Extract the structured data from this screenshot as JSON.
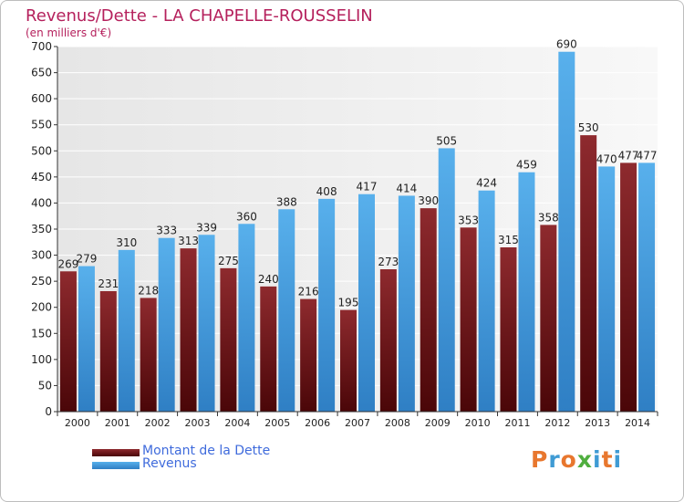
{
  "header": {
    "title": "Revenus/Dette - LA CHAPELLE-ROUSSELIN",
    "subtitle": "(en milliers d'€)"
  },
  "logo": {
    "text": "Proxiti",
    "letter_colors": [
      "#e8772e",
      "#3f9bd4",
      "#e8772e",
      "#4fae3e",
      "#3f9bd4",
      "#e8772e",
      "#3f9bd4"
    ]
  },
  "chart_data": {
    "type": "bar",
    "title": "Revenus/Dette - LA CHAPELLE-ROUSSELIN",
    "subtitle": "(en milliers d'€)",
    "categories": [
      "2000",
      "2001",
      "2002",
      "2003",
      "2004",
      "2005",
      "2006",
      "2007",
      "2008",
      "2009",
      "2010",
      "2011",
      "2012",
      "2013",
      "2014"
    ],
    "series": [
      {
        "name": "Montant de la Dette",
        "color": "#7a1e22",
        "values": [
          269,
          231,
          218,
          313,
          275,
          240,
          216,
          195,
          273,
          390,
          353,
          315,
          358,
          530,
          477
        ]
      },
      {
        "name": "Revenus",
        "color": "#4aa3e6",
        "values": [
          279,
          310,
          333,
          339,
          360,
          388,
          408,
          417,
          414,
          505,
          424,
          459,
          690,
          470,
          477
        ]
      }
    ],
    "ylim": [
      0,
      700
    ],
    "yticks": [
      0,
      50,
      100,
      150,
      200,
      250,
      300,
      350,
      400,
      450,
      500,
      550,
      600,
      650,
      700
    ],
    "grid": true,
    "legend_position": "bottom-left"
  }
}
